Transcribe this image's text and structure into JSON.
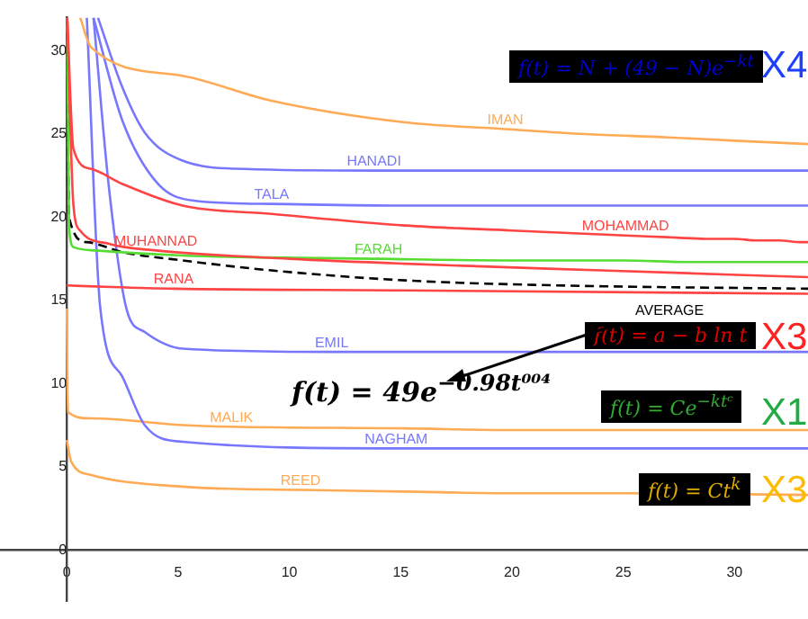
{
  "chart_data": {
    "type": "line",
    "xlim": [
      -3,
      33.3
    ],
    "ylim": [
      -3.1,
      32
    ],
    "xticks": [
      0,
      5,
      10,
      15,
      20,
      25,
      30
    ],
    "yticks": [
      0,
      5,
      10,
      15,
      20,
      25,
      30
    ],
    "grid": false,
    "legend": false,
    "marker": "none",
    "series": [
      {
        "name": "IMAN",
        "color": "#ffaa55",
        "x": [
          0.6,
          1.1,
          5.2,
          9.2,
          15.2,
          19.7,
          23.3,
          27,
          30,
          33.3
        ],
        "values": [
          32,
          30.2,
          28.5,
          27.0,
          25.7,
          25.3,
          25.0,
          24.8,
          24.6,
          24.4
        ]
      },
      {
        "name": "HANADI",
        "color": "#7777ff",
        "x": [
          1.4,
          2.5,
          3.5,
          5.2,
          8,
          13.8,
          20,
          25,
          30,
          33.3
        ],
        "values": [
          32,
          27.8,
          25.1,
          23.4,
          22.9,
          22.8,
          22.8,
          22.8,
          22.8,
          22.8
        ]
      },
      {
        "name": "TALA",
        "color": "#7777ff",
        "x": [
          1.2,
          2.5,
          4.1,
          5.7,
          9.2,
          15,
          20,
          27,
          33.3
        ],
        "values": [
          32,
          25.8,
          22.0,
          21.0,
          20.8,
          20.7,
          20.7,
          20.7,
          20.7
        ]
      },
      {
        "name": "MOHAMMAD",
        "color": "#ff4444",
        "x": [
          0.02,
          0.3,
          1.1,
          2.5,
          5.2,
          9.2,
          15.2,
          20,
          25.1,
          27,
          28.7,
          30,
          31,
          32,
          33,
          33.3
        ],
        "values": [
          32,
          24.1,
          22.9,
          22.0,
          20.7,
          20.2,
          19.5,
          19.2,
          18.9,
          18.8,
          18.7,
          18.7,
          18.6,
          18.6,
          18.5,
          18.5
        ]
      },
      {
        "name": "MUHANNAD",
        "color": "#ff4444",
        "x": [
          0.02,
          0.3,
          0.6,
          1.9,
          4.0,
          10,
          15.2,
          24,
          33.3
        ],
        "values": [
          32,
          20.7,
          19.2,
          18.4,
          18.0,
          17.5,
          17.2,
          16.8,
          16.4
        ]
      },
      {
        "name": "FARAH",
        "color": "#55dd33",
        "x": [
          0.02,
          0.1,
          0.3,
          1.3,
          5.2,
          14,
          20,
          25,
          28,
          30,
          33.3
        ],
        "values": [
          32,
          19.5,
          18.2,
          18.0,
          17.7,
          17.5,
          17.4,
          17.4,
          17.3,
          17.3,
          17.3
        ]
      },
      {
        "color": "#000000",
        "line_style": "dashed",
        "x": [
          0.02,
          0.1,
          0.9,
          2.5,
          5.2,
          9.2,
          15.2,
          22,
          33.3
        ],
        "values": [
          32,
          20.0,
          18.5,
          17.9,
          17.4,
          16.8,
          16.2,
          15.9,
          15.7
        ]
      },
      {
        "name": "RANA",
        "color": "#ff4444",
        "x": [
          0,
          2,
          4.8,
          15,
          33.3
        ],
        "values": [
          15.9,
          15.8,
          15.7,
          15.6,
          15.4
        ]
      },
      {
        "name": "EMIL",
        "color": "#7777ff",
        "x": [
          1.2,
          1.9,
          2.7,
          3.5,
          5.2,
          11.9,
          16,
          20,
          25,
          30,
          33.3
        ],
        "values": [
          32,
          21.7,
          14.4,
          13.1,
          12.1,
          11.9,
          11.9,
          11.9,
          11.9,
          11.9,
          11.9
        ]
      },
      {
        "name": "NAGHAM",
        "color": "#7777ff",
        "x": [
          0.9,
          1.5,
          2.5,
          3.5,
          5.2,
          14.8,
          20,
          25,
          30,
          32,
          33.3
        ],
        "values": [
          32,
          14.6,
          10.4,
          7.5,
          6.5,
          6.1,
          6.1,
          6.1,
          6.1,
          6.1,
          6.1
        ]
      },
      {
        "name": "MALIK",
        "color": "#ffaa55",
        "x": [
          0,
          0.05,
          1.1,
          5.2,
          7.4,
          15.2,
          20,
          25,
          33.3
        ],
        "values": [
          14.5,
          8.3,
          7.9,
          7.5,
          7.4,
          7.3,
          7.2,
          7.2,
          7.2
        ]
      },
      {
        "name": "REED",
        "color": "#ffaa55",
        "x": [
          0,
          0.2,
          1.1,
          5.2,
          10.5,
          15.2,
          20,
          25,
          33.3
        ],
        "values": [
          6.6,
          5.3,
          4.5,
          3.8,
          3.6,
          3.5,
          3.4,
          3.4,
          3.3
        ]
      }
    ],
    "annotations": [
      "f(t) = N + (49 − N)e$^{−kt}$",
      "X4",
      "f(t) = a − b ln t",
      "X3",
      "f(t) = Ce$^{−ktᶜ}$",
      "X1",
      "f(t) = Ct$^{k}$",
      "X3",
      "AVERAGE",
      "f(t) = 49e$^{−0.98t⁰⁰⁴}$"
    ]
  }
}
